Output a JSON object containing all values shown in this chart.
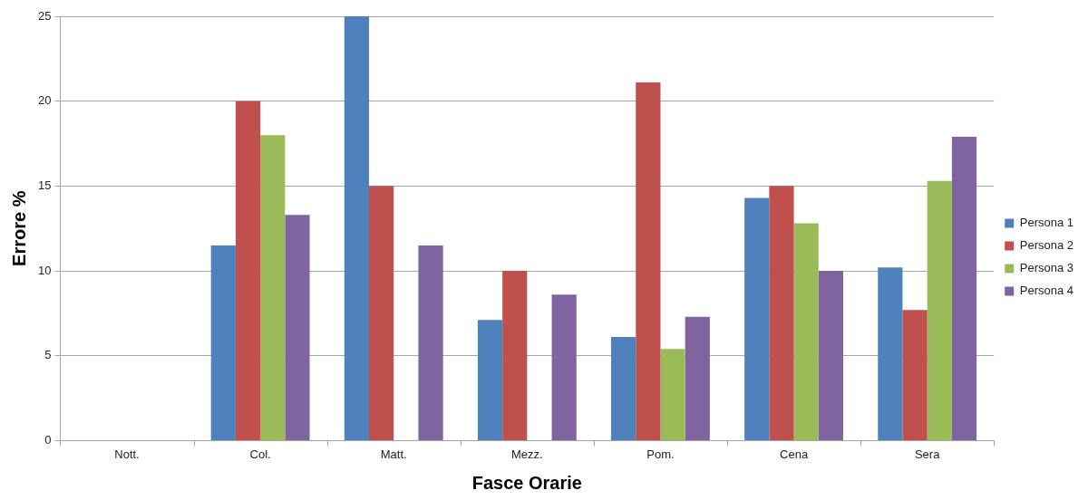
{
  "chart_data": {
    "type": "bar",
    "xlabel": "Fasce Orarie",
    "ylabel": "Errore %",
    "categories": [
      "Nott.",
      "Col.",
      "Matt.",
      "Mezz.",
      "Pom.",
      "Cena",
      "Sera"
    ],
    "series": [
      {
        "name": "Persona 1",
        "color": "#4f81bd",
        "values": [
          0,
          11.5,
          25,
          7.1,
          6.1,
          14.3,
          10.2
        ]
      },
      {
        "name": "Persona 2",
        "color": "#c0504d",
        "values": [
          0,
          20,
          15,
          10,
          21.1,
          15,
          7.7
        ]
      },
      {
        "name": "Persona 3",
        "color": "#9bbb59",
        "values": [
          0,
          18,
          0,
          0,
          5.4,
          12.8,
          15.3
        ]
      },
      {
        "name": "Persona 4",
        "color": "#8064a2",
        "values": [
          0,
          13.3,
          11.5,
          8.6,
          7.3,
          10,
          17.9
        ]
      }
    ],
    "ylim": [
      0,
      25
    ],
    "yticks": [
      0,
      5,
      10,
      15,
      20,
      25
    ],
    "grid": "y",
    "legend": "right"
  }
}
